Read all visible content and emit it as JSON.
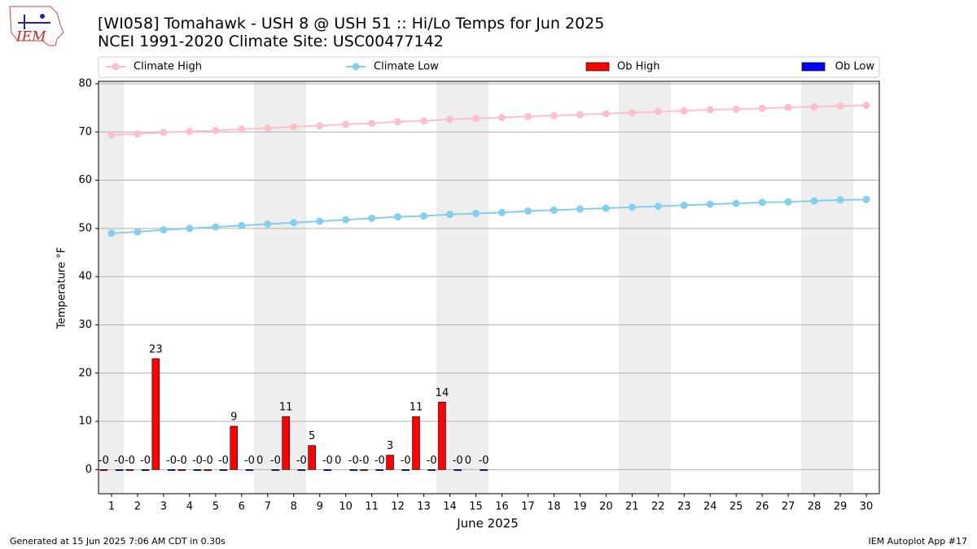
{
  "logo": "IEM",
  "footer_left": "Generated at 15 Jun 2025 7:06 AM CDT in 0.30s",
  "footer_right": "IEM Autoplot App #17",
  "chart_data": {
    "type": "bar",
    "title": "[WI058] Tomahawk - USH 8 @ USH 51 :: Hi/Lo Temps for Jun 2025",
    "subtitle": "NCEI 1991-2020 Climate Site: USC00477142",
    "xlabel": "June 2025",
    "ylabel": "Temperature °F",
    "x": [
      1,
      2,
      3,
      4,
      5,
      6,
      7,
      8,
      9,
      10,
      11,
      12,
      13,
      14,
      15,
      16,
      17,
      18,
      19,
      20,
      21,
      22,
      23,
      24,
      25,
      26,
      27,
      28,
      29,
      30
    ],
    "xlim": [
      0.5,
      30.5
    ],
    "xticks": [
      1,
      2,
      3,
      4,
      5,
      6,
      7,
      8,
      9,
      10,
      11,
      12,
      13,
      14,
      15,
      16,
      17,
      18,
      19,
      20,
      21,
      22,
      23,
      24,
      25,
      26,
      27,
      28,
      29,
      30
    ],
    "ylim": [
      -5,
      80.5
    ],
    "yticks": [
      0,
      10,
      20,
      30,
      40,
      50,
      60,
      70,
      80
    ],
    "grid": true,
    "legend": "top",
    "series": [
      {
        "name": "Climate High",
        "type": "line",
        "color": "#ffc0cb",
        "values": [
          69.4,
          69.6,
          69.9,
          70.1,
          70.3,
          70.6,
          70.8,
          71.1,
          71.3,
          71.6,
          71.8,
          72.1,
          72.3,
          72.6,
          72.8,
          73.0,
          73.2,
          73.4,
          73.6,
          73.8,
          74.0,
          74.2,
          74.4,
          74.6,
          74.7,
          74.9,
          75.1,
          75.2,
          75.4,
          75.5
        ]
      },
      {
        "name": "Climate Low",
        "type": "line",
        "color": "#87ceeb",
        "values": [
          49.0,
          49.3,
          49.7,
          50.0,
          50.3,
          50.6,
          50.9,
          51.2,
          51.5,
          51.8,
          52.1,
          52.4,
          52.6,
          52.9,
          53.1,
          53.3,
          53.6,
          53.8,
          54.0,
          54.2,
          54.4,
          54.6,
          54.8,
          55.0,
          55.2,
          55.4,
          55.5,
          55.7,
          55.9,
          56.0
        ]
      },
      {
        "name": "Ob High",
        "type": "bar",
        "color": "#ff0000",
        "values": [
          -0.2,
          -0.2,
          23,
          -0.2,
          -0.2,
          9,
          0,
          11,
          5,
          0,
          -0.2,
          3,
          11,
          14,
          0,
          null,
          null,
          null,
          null,
          null,
          null,
          null,
          null,
          null,
          null,
          null,
          null,
          null,
          null,
          null
        ],
        "value_labels": [
          "-0",
          "-0",
          "23",
          "-0",
          "-0",
          "9",
          "0",
          "11",
          "5",
          "0",
          "-0",
          "3",
          "11",
          "14",
          "0",
          null,
          null,
          null,
          null,
          null,
          null,
          null,
          null,
          null,
          null,
          null,
          null,
          null,
          null,
          null
        ]
      },
      {
        "name": "Ob Low",
        "type": "bar",
        "color": "#0000ff",
        "values": [
          -0.2,
          -0.2,
          -0.2,
          -0.2,
          -0.2,
          -0.2,
          -0.2,
          -0.2,
          -0.2,
          -0.2,
          -0.2,
          -0.2,
          -0.2,
          -0.2,
          -0.2,
          null,
          null,
          null,
          null,
          null,
          null,
          null,
          null,
          null,
          null,
          null,
          null,
          null,
          null,
          null
        ],
        "value_labels": [
          "-0",
          "-0",
          "-0",
          "-0",
          "-0",
          "-0",
          "-0",
          "-0",
          "-0",
          "-0",
          "-0",
          "-0",
          "-0",
          "-0",
          "-0",
          null,
          null,
          null,
          null,
          null,
          null,
          null,
          null,
          null,
          null,
          null,
          null,
          null,
          null,
          null
        ]
      }
    ]
  }
}
